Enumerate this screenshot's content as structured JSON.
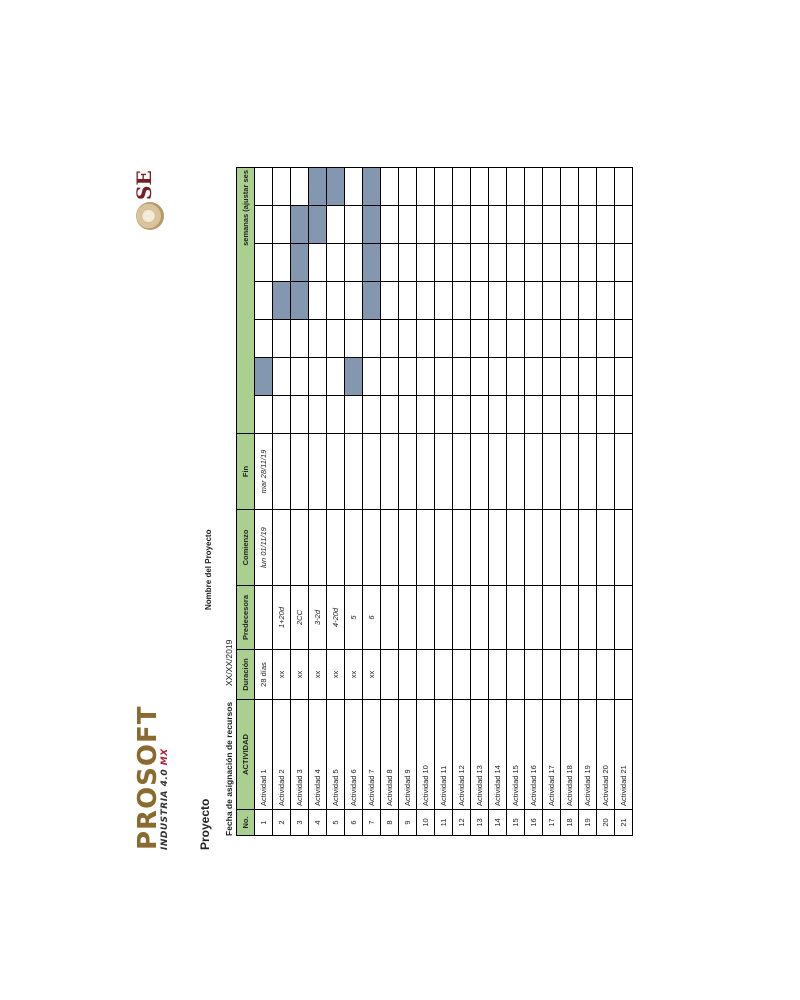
{
  "brand": {
    "name": "PROSOFT",
    "tagline": "INDUSTRIA 4.0",
    "tagline_suffix": "MX",
    "se": "SE"
  },
  "header": {
    "proyecto": "Proyecto",
    "nombre_proyecto": "Nombre del Proyecto",
    "fecha_label": "Fecha de asignación de recursos",
    "fecha_value": "XX/XX/2019"
  },
  "table": {
    "columns": [
      "No.",
      "ACTIVIDAD",
      "Duración",
      "Predecesora",
      "Comienzo",
      "Fin"
    ],
    "weeks_header": "semanas (ajustar ses",
    "rows": [
      {
        "no": "1",
        "actividad": "Actividad 1",
        "duracion": "28 días",
        "predecesora": "",
        "comienzo": "lun 01/11/19",
        "fin": "mar 28/11/19",
        "filled": [
          1
        ]
      },
      {
        "no": "2",
        "actividad": "Actividad 2",
        "duracion": "xx",
        "predecesora": "1+20d",
        "comienzo": "",
        "fin": "",
        "filled": [
          3
        ]
      },
      {
        "no": "3",
        "actividad": "Actividad 3",
        "duracion": "xx",
        "predecesora": "2CC",
        "comienzo": "",
        "fin": "",
        "filled": [
          3,
          4,
          5
        ]
      },
      {
        "no": "4",
        "actividad": "Actividad 4",
        "duracion": "xx",
        "predecesora": "3-2d",
        "comienzo": "",
        "fin": "",
        "filled": [
          5,
          6
        ]
      },
      {
        "no": "5",
        "actividad": "Actividad 5",
        "duracion": "xx",
        "predecesora": "4-20d",
        "comienzo": "",
        "fin": "",
        "filled": [
          6
        ]
      },
      {
        "no": "6",
        "actividad": "Actividad 6",
        "duracion": "xx",
        "predecesora": "5",
        "comienzo": "",
        "fin": "",
        "filled": [
          1
        ]
      },
      {
        "no": "7",
        "actividad": "Actividad 7",
        "duracion": "xx",
        "predecesora": "6",
        "comienzo": "",
        "fin": "",
        "filled": [
          3,
          4,
          5,
          6
        ]
      },
      {
        "no": "8",
        "actividad": "Actividad 8",
        "duracion": "",
        "predecesora": "",
        "comienzo": "",
        "fin": "",
        "filled": []
      },
      {
        "no": "9",
        "actividad": "Actividad 9",
        "duracion": "",
        "predecesora": "",
        "comienzo": "",
        "fin": "",
        "filled": []
      },
      {
        "no": "10",
        "actividad": "Actividad 10",
        "duracion": "",
        "predecesora": "",
        "comienzo": "",
        "fin": "",
        "filled": []
      },
      {
        "no": "11",
        "actividad": "Actividad 11",
        "duracion": "",
        "predecesora": "",
        "comienzo": "",
        "fin": "",
        "filled": []
      },
      {
        "no": "12",
        "actividad": "Actividad 12",
        "duracion": "",
        "predecesora": "",
        "comienzo": "",
        "fin": "",
        "filled": []
      },
      {
        "no": "13",
        "actividad": "Actividad 13",
        "duracion": "",
        "predecesora": "",
        "comienzo": "",
        "fin": "",
        "filled": []
      },
      {
        "no": "14",
        "actividad": "Actividad 14",
        "duracion": "",
        "predecesora": "",
        "comienzo": "",
        "fin": "",
        "filled": []
      },
      {
        "no": "15",
        "actividad": "Actividad 15",
        "duracion": "",
        "predecesora": "",
        "comienzo": "",
        "fin": "",
        "filled": []
      },
      {
        "no": "16",
        "actividad": "Actividad 16",
        "duracion": "",
        "predecesora": "",
        "comienzo": "",
        "fin": "",
        "filled": []
      },
      {
        "no": "17",
        "actividad": "Actividad 17",
        "duracion": "",
        "predecesora": "",
        "comienzo": "",
        "fin": "",
        "filled": []
      },
      {
        "no": "18",
        "actividad": "Actividad 18",
        "duracion": "",
        "predecesora": "",
        "comienzo": "",
        "fin": "",
        "filled": []
      },
      {
        "no": "19",
        "actividad": "Actividad 19",
        "duracion": "",
        "predecesora": "",
        "comienzo": "",
        "fin": "",
        "filled": []
      },
      {
        "no": "20",
        "actividad": "Actividad 20",
        "duracion": "",
        "predecesora": "",
        "comienzo": "",
        "fin": "",
        "filled": []
      },
      {
        "no": "21",
        "actividad": "Actividad 21",
        "duracion": "",
        "predecesora": "",
        "comienzo": "",
        "fin": "",
        "filled": []
      }
    ],
    "week_count": 7
  },
  "colors": {
    "header_green": "#a9d08e",
    "bar_fill": "#8497b0",
    "brand_gold": "#8a6a2e",
    "brand_red": "#b21f33",
    "se_maroon": "#7a1b24"
  }
}
